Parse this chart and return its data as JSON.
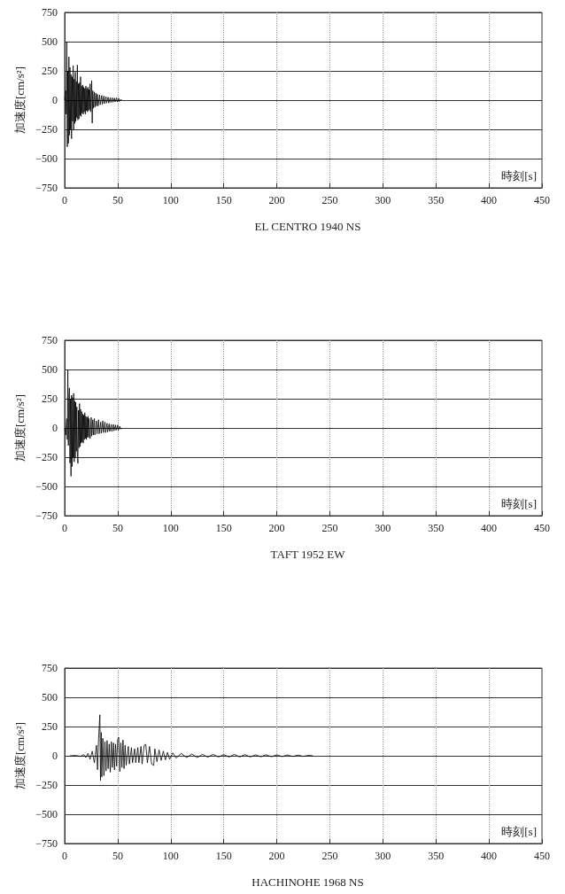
{
  "chart_data": [
    {
      "type": "line",
      "title": "EL CENTRO 1940 NS",
      "xlabel": "時刻[s]",
      "ylabel": "加速度[cm/s²]",
      "xlim": [
        0,
        450
      ],
      "xticks": [
        0,
        50,
        100,
        150,
        200,
        250,
        300,
        350,
        400,
        450
      ],
      "ylim": [
        -750,
        750
      ],
      "yticks": [
        -750,
        -500,
        -250,
        0,
        250,
        500,
        750
      ],
      "grid": true,
      "series": [
        {
          "color": "#000000",
          "x": [
            0,
            1,
            1.5,
            2,
            2.5,
            3,
            3.5,
            4,
            4.5,
            5,
            5.5,
            6,
            6.5,
            7,
            7.5,
            8,
            8.5,
            9,
            9.5,
            10,
            10.5,
            11,
            11.5,
            12,
            12.5,
            13,
            13.5,
            14,
            14.5,
            15,
            15.5,
            16,
            16.5,
            17,
            17.5,
            18,
            18.5,
            19,
            19.5,
            20,
            20.5,
            21,
            21.5,
            22,
            22.5,
            23,
            23.5,
            24,
            24.5,
            25.5,
            26,
            26.5,
            27,
            28,
            28.5,
            29.5,
            30,
            31,
            31.5,
            33,
            33.5,
            35,
            35.5,
            37,
            37.5,
            39,
            39.5,
            41,
            41.5,
            43,
            43.5,
            45,
            45.5,
            47,
            47.5,
            49,
            49.5,
            51,
            51.5,
            53,
            53.7
          ],
          "values": [
            0,
            80,
            -120,
            500,
            -400,
            250,
            -370,
            370,
            -300,
            280,
            -250,
            220,
            -330,
            200,
            -180,
            295,
            -250,
            180,
            -200,
            240,
            -180,
            160,
            -150,
            300,
            -170,
            140,
            -160,
            150,
            -130,
            200,
            -140,
            120,
            -110,
            130,
            -120,
            110,
            -100,
            100,
            -120,
            120,
            -90,
            100,
            -100,
            110,
            -90,
            90,
            -80,
            140,
            -100,
            167,
            -197,
            80,
            -70,
            70,
            -60,
            60,
            -50,
            50,
            -50,
            45,
            -40,
            40,
            -35,
            35,
            -30,
            30,
            -25,
            25,
            -25,
            22,
            -20,
            20,
            -18,
            18,
            -15,
            20,
            -15,
            15,
            -12,
            8,
            0
          ]
        }
      ]
    },
    {
      "type": "line",
      "title": "TAFT 1952 EW",
      "xlabel": "時刻[s]",
      "ylabel": "加速度[cm/s²]",
      "xlim": [
        0,
        450
      ],
      "xticks": [
        0,
        50,
        100,
        150,
        200,
        250,
        300,
        350,
        400,
        450
      ],
      "ylim": [
        -750,
        750
      ],
      "yticks": [
        -750,
        -500,
        -250,
        0,
        250,
        500,
        750
      ],
      "grid": true,
      "series": [
        {
          "color": "#000000",
          "x": [
            0,
            1,
            2,
            2.5,
            3,
            3.5,
            4,
            4.5,
            5,
            5.5,
            6,
            6.5,
            7,
            7.5,
            8,
            8.5,
            9,
            9.5,
            10,
            10.5,
            11,
            11.5,
            12,
            12.5,
            13,
            13.5,
            14,
            14.5,
            15,
            15.5,
            16,
            16.5,
            17,
            17.5,
            18,
            18.5,
            19,
            19.5,
            20,
            20.5,
            21,
            21.5,
            22,
            22.5,
            23,
            24,
            25,
            25.5,
            26.5,
            27,
            28,
            28.5,
            30,
            30.5,
            32,
            32.5,
            34,
            34.5,
            36,
            36.5,
            38,
            38.5,
            40,
            40.5,
            42,
            42.5,
            44,
            44.5,
            46,
            46.5,
            48,
            48.5,
            50,
            50.5,
            52,
            52.5,
            54
          ],
          "values": [
            0,
            -60,
            80,
            -100,
            500,
            -150,
            250,
            342,
            -300,
            250,
            -413,
            280,
            -330,
            260,
            -250,
            296,
            -290,
            230,
            -250,
            220,
            -200,
            180,
            -220,
            -303,
            150,
            -170,
            208,
            -160,
            160,
            -130,
            140,
            -120,
            120,
            -130,
            110,
            -100,
            130,
            -90,
            100,
            -100,
            90,
            -80,
            100,
            -80,
            80,
            -90,
            90,
            -70,
            70,
            -60,
            80,
            -60,
            60,
            -50,
            70,
            -50,
            50,
            -45,
            60,
            -40,
            50,
            -40,
            40,
            -35,
            35,
            -30,
            30,
            -30,
            30,
            -25,
            25,
            -20,
            25,
            -20,
            15,
            -10,
            0
          ]
        }
      ]
    },
    {
      "type": "line",
      "title": "HACHINOHE 1968 NS",
      "xlabel": "時刻[s]",
      "ylabel": "加速度[cm/s²]",
      "xlim": [
        0,
        450
      ],
      "xticks": [
        0,
        50,
        100,
        150,
        200,
        250,
        300,
        350,
        400,
        450
      ],
      "ylim": [
        -750,
        750
      ],
      "yticks": [
        -750,
        -500,
        -250,
        0,
        250,
        500,
        750
      ],
      "grid": true,
      "series": [
        {
          "color": "#000000",
          "x": [
            5,
            10,
            15,
            18,
            20,
            22,
            24,
            26,
            28,
            30,
            31,
            32,
            33.2,
            33.8,
            34.5,
            35,
            36,
            37,
            38,
            39,
            40,
            41,
            42,
            43,
            44,
            45,
            46,
            47,
            48,
            49,
            50,
            51,
            52,
            53,
            54,
            55,
            56,
            57,
            58,
            60,
            61,
            63,
            64,
            66,
            67,
            69,
            70,
            72,
            73,
            75,
            76.5,
            78,
            80,
            82,
            84,
            85,
            87,
            89,
            91,
            93,
            95,
            97,
            99,
            102,
            105,
            110,
            115,
            120,
            125,
            130,
            135,
            140,
            145,
            150,
            155,
            160,
            165,
            170,
            175,
            180,
            185,
            190,
            195,
            200,
            205,
            210,
            215,
            220,
            225,
            230,
            234
          ],
          "values": [
            0,
            3,
            -5,
            10,
            -15,
            20,
            -30,
            40,
            -60,
            90,
            -120,
            150,
            350,
            -210,
            200,
            -180,
            150,
            -170,
            120,
            -130,
            130,
            -110,
            100,
            -140,
            120,
            -100,
            110,
            -120,
            100,
            -90,
            140,
            158,
            -135,
            110,
            -100,
            135,
            -110,
            90,
            -80,
            80,
            -70,
            70,
            -60,
            60,
            -60,
            70,
            -60,
            80,
            -70,
            90,
            98,
            -60,
            80,
            -70,
            -83,
            60,
            -50,
            50,
            -40,
            40,
            -35,
            30,
            -30,
            25,
            -20,
            20,
            -15,
            15,
            -15,
            12,
            -12,
            12,
            -10,
            10,
            -10,
            12,
            -10,
            10,
            -10,
            8,
            -8,
            8,
            -8,
            8,
            -7,
            7,
            -6,
            6,
            -5,
            4,
            0
          ]
        }
      ]
    }
  ]
}
